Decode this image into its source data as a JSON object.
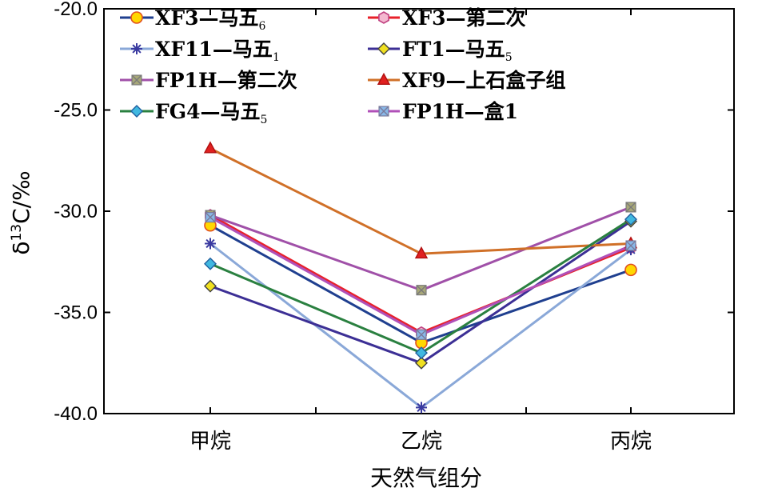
{
  "chart_data": {
    "type": "line",
    "categories": [
      "甲烷",
      "乙烷",
      "丙烷"
    ],
    "xlabel": "天然气组分",
    "ylabel": "δ13C/‰",
    "ylabel_parts": {
      "delta": "δ",
      "sup": "13",
      "rest": "C/‰"
    },
    "ylim": [
      -40.0,
      -20.0
    ],
    "yticks": [
      "-20.0",
      "-25.0",
      "-30.0",
      "-35.0",
      "-40.0"
    ],
    "ytick_values": [
      -20,
      -25,
      -30,
      -35,
      -40
    ],
    "legend_placement": "top-left",
    "series": [
      {
        "name": "XF3—马五6",
        "label_main": "XF3—马五",
        "label_sub": "6",
        "color": "#1f3f8f",
        "marker": "circle",
        "marker_fill": "#ffd700",
        "marker_stroke": "#e05020",
        "values": [
          -30.7,
          -36.5,
          -32.9
        ]
      },
      {
        "name": "XF3—第二次",
        "label_main": "XF3—第二次",
        "label_sub": "",
        "color": "#e8202a",
        "marker": "hexagon",
        "marker_fill": "#f4b8d0",
        "marker_stroke": "#c04080",
        "values": [
          -30.2,
          -36.0,
          -31.8
        ]
      },
      {
        "name": "XF11—马五1",
        "label_main": "XF11—马五",
        "label_sub": "1",
        "color": "#8aa8d8",
        "marker": "asterisk",
        "marker_fill": "none",
        "marker_stroke": "#3a3aa0",
        "values": [
          -31.6,
          -39.7,
          -31.9
        ]
      },
      {
        "name": "FT1—马五5",
        "label_main": "FT1—马五",
        "label_sub": "5",
        "color": "#3c2f95",
        "marker": "diamond",
        "marker_fill": "#f0e020",
        "marker_stroke": "#404040",
        "values": [
          -33.7,
          -37.5,
          -30.5
        ]
      },
      {
        "name": "FP1H—第二次",
        "label_main": "FP1H—第二次",
        "label_sub": "",
        "color": "#a050a8",
        "marker": "xsquare",
        "marker_fill": "#a8a878",
        "marker_stroke": "#7a7a7a",
        "values": [
          -30.2,
          -33.9,
          -29.8
        ]
      },
      {
        "name": "XF9—上石盒子组",
        "label_main": "XF9—上石盒子组",
        "label_sub": "",
        "color": "#d07028",
        "marker": "triangle",
        "marker_fill": "#e02020",
        "marker_stroke": "#b01010",
        "values": [
          -26.9,
          -32.1,
          -31.6
        ]
      },
      {
        "name": "FG4—马五5",
        "label_main": "FG4—马五",
        "label_sub": "5",
        "color": "#2a8040",
        "marker": "diamond",
        "marker_fill": "#40b8e0",
        "marker_stroke": "#2060a0",
        "values": [
          -32.6,
          -37.0,
          -30.4
        ]
      },
      {
        "name": "FP1H—盒1",
        "label_main": "FP1H—盒1",
        "label_sub": "",
        "color": "#b050b8",
        "marker": "xsquare",
        "marker_fill": "#88b8e8",
        "marker_stroke": "#7a7a9a",
        "values": [
          -30.3,
          -36.1,
          -31.7
        ]
      }
    ]
  }
}
